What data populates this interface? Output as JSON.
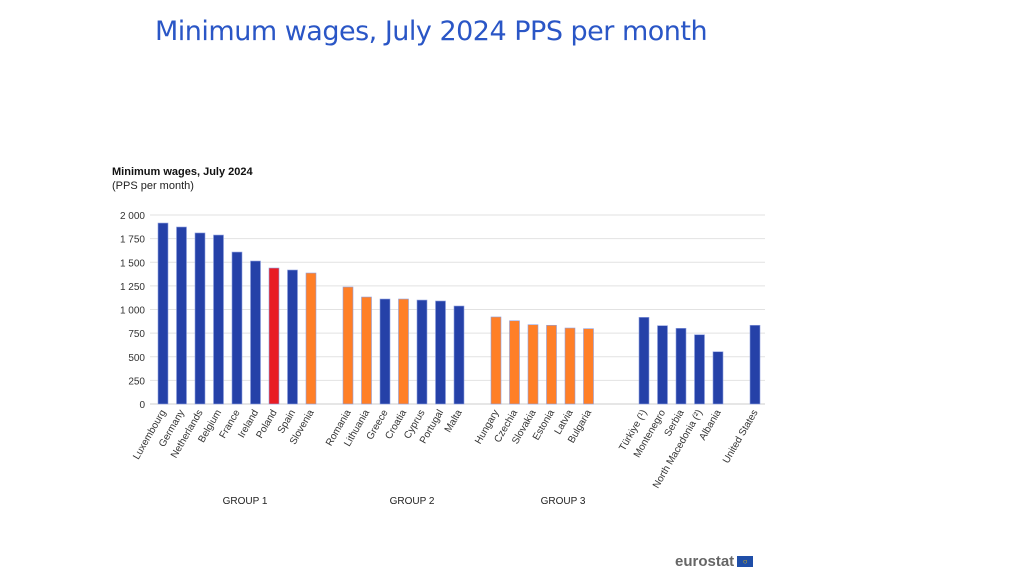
{
  "page_title": "Minimum wages, July 2024  PPS per month",
  "logo_text": "eurostat",
  "colors": {
    "default": "#2541a8",
    "highlight": "#e81c24",
    "euro_area_new": "#ff7f27"
  },
  "chart_data": {
    "type": "bar",
    "title": "Minimum wages, July 2024",
    "subtitle": "(PPS per month)",
    "ylim": [
      0,
      2000
    ],
    "yticks": [
      "0",
      "250",
      "500",
      "750",
      "1 000",
      "1 250",
      "1 500",
      "1 750",
      "2 000"
    ],
    "ytick_values": [
      0,
      250,
      500,
      750,
      1000,
      1250,
      1500,
      1750,
      2000
    ],
    "grid": true,
    "groups": [
      {
        "label": "GROUP 1"
      },
      {
        "label": "GROUP 2"
      },
      {
        "label": "GROUP 3"
      }
    ],
    "categories": [
      "Luxembourg",
      "Germany",
      "Netherlands",
      "Belgium",
      "France",
      "Ireland",
      "Poland",
      "Spain",
      "Slovenia",
      "Romania",
      "Lithuania",
      "Greece",
      "Croatia",
      "Cyprus",
      "Portugal",
      "Malta",
      "Hungary",
      "Czechia",
      "Slovakia",
      "Estonia",
      "Latvia",
      "Bulgaria",
      "Türkiye (¹)",
      "Montenegro",
      "Serbia",
      "North Macedonia (²)",
      "Albania",
      "United States"
    ],
    "values": [
      1915,
      1873,
      1810,
      1788,
      1608,
      1513,
      1439,
      1418,
      1386,
      1238,
      1132,
      1111,
      1111,
      1100,
      1090,
      1037,
      921,
      881,
      839,
      833,
      804,
      797,
      917,
      829,
      801,
      733,
      553,
      833
    ],
    "color_keys": [
      "default",
      "default",
      "default",
      "default",
      "default",
      "default",
      "highlight",
      "default",
      "euro_area_new",
      "euro_area_new",
      "euro_area_new",
      "default",
      "euro_area_new",
      "default",
      "default",
      "default",
      "euro_area_new",
      "euro_area_new",
      "euro_area_new",
      "euro_area_new",
      "euro_area_new",
      "euro_area_new",
      "default",
      "default",
      "default",
      "default",
      "default",
      "default"
    ]
  }
}
